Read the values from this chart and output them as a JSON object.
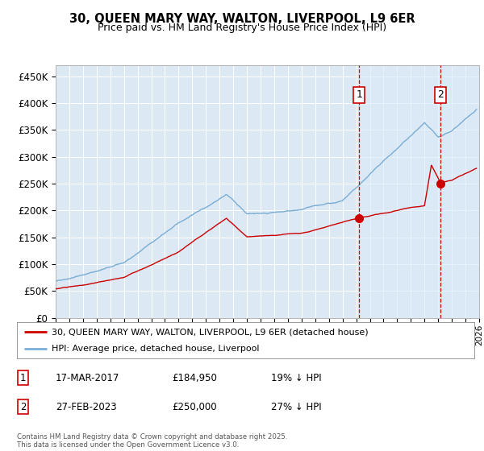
{
  "title_line1": "30, QUEEN MARY WAY, WALTON, LIVERPOOL, L9 6ER",
  "title_line2": "Price paid vs. HM Land Registry's House Price Index (HPI)",
  "background_color": "#dce9f5",
  "plot_bg_color": "#dce9f5",
  "shade_color": "#cfe0f0",
  "red_line_label": "30, QUEEN MARY WAY, WALTON, LIVERPOOL, L9 6ER (detached house)",
  "blue_line_label": "HPI: Average price, detached house, Liverpool",
  "marker1_date": "17-MAR-2017",
  "marker1_price": 184950,
  "marker1_text": "19% ↓ HPI",
  "marker1_x": 2017.21,
  "marker1_y": 184950,
  "marker2_date": "27-FEB-2023",
  "marker2_price": 250000,
  "marker2_text": "27% ↓ HPI",
  "marker2_x": 2023.15,
  "marker2_y": 250000,
  "xmin": 1995,
  "xmax": 2026,
  "ymin": 0,
  "ymax": 470000,
  "yticks": [
    0,
    50000,
    100000,
    150000,
    200000,
    250000,
    300000,
    350000,
    400000,
    450000
  ],
  "footer": "Contains HM Land Registry data © Crown copyright and database right 2025.\nThis data is licensed under the Open Government Licence v3.0.",
  "red_color": "#cc0000",
  "blue_color": "#7aadd4",
  "dashed_color": "#cc0000",
  "white_grid": "#ffffff"
}
